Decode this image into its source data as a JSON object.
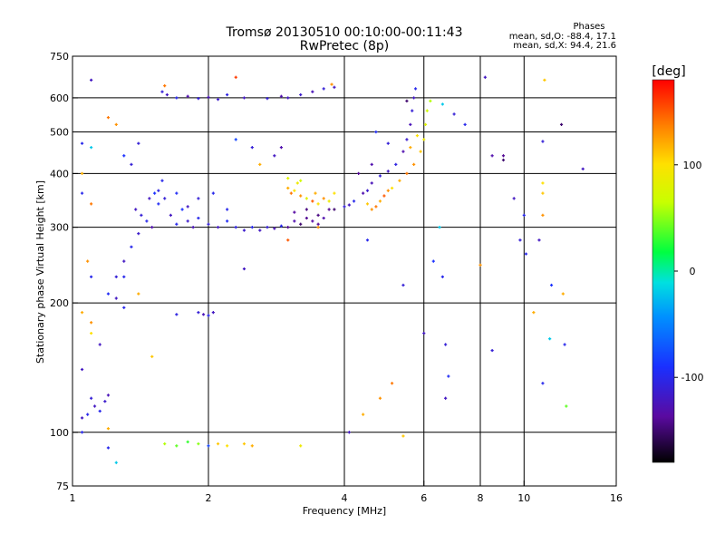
{
  "chart_data": {
    "type": "scatter",
    "title": "Tromsø 20130510 00:10:00-00:11:43",
    "subtitle": "RwPretec (8p)",
    "xlabel": "Frequency [MHz]",
    "ylabel": "Stationary phase Virtual Height [km]",
    "x_scale": "log",
    "y_scale": "log",
    "xlim": [
      1,
      16
    ],
    "ylim": [
      75,
      750
    ],
    "x_ticks": [
      {
        "v": 1,
        "t": "1"
      },
      {
        "v": 2,
        "t": "2"
      },
      {
        "v": 4,
        "t": "4"
      },
      {
        "v": 6,
        "t": "6"
      },
      {
        "v": 8,
        "t": "8"
      },
      {
        "v": 10,
        "t": "10"
      },
      {
        "v": 16,
        "t": "16"
      }
    ],
    "y_ticks": [
      {
        "v": 75,
        "t": "75"
      },
      {
        "v": 100,
        "t": "100"
      },
      {
        "v": 200,
        "t": "200"
      },
      {
        "v": 300,
        "t": "300"
      },
      {
        "v": 400,
        "t": "400"
      },
      {
        "v": 500,
        "t": "500"
      },
      {
        "v": 600,
        "t": "600"
      },
      {
        "v": 750,
        "t": "750"
      }
    ],
    "grid_x": [
      2,
      4,
      6,
      8,
      10
    ],
    "grid_y": [
      100,
      200,
      300,
      400,
      500,
      600
    ],
    "stats": {
      "header": "Phases",
      "line1": "mean, sd,O: -88.4, 17.1",
      "line2": "mean, sd,X:  94.4, 21.6"
    },
    "colorbar": {
      "label": "[deg]",
      "min": -180,
      "max": 180,
      "ticks": [
        {
          "v": 100,
          "t": "100"
        },
        {
          "v": 0,
          "t": "0"
        },
        {
          "v": -100,
          "t": "-100"
        }
      ]
    },
    "series": [
      {
        "points": [
          [
            1.58,
            620,
            -110
          ],
          [
            1.62,
            610,
            -120
          ],
          [
            1.7,
            600,
            -100
          ],
          [
            1.8,
            605,
            -130
          ],
          [
            1.9,
            598,
            -110
          ],
          [
            2.0,
            602,
            -125
          ],
          [
            2.1,
            595,
            -115
          ],
          [
            2.2,
            610,
            -105
          ],
          [
            2.4,
            600,
            -120
          ],
          [
            2.7,
            598,
            -110
          ],
          [
            2.9,
            605,
            -130
          ],
          [
            3.0,
            600,
            -120
          ],
          [
            3.2,
            610,
            -115
          ],
          [
            3.4,
            620,
            -125
          ],
          [
            3.6,
            630,
            -110
          ],
          [
            3.8,
            635,
            -120
          ],
          [
            3.75,
            645,
            130
          ],
          [
            1.6,
            640,
            140
          ],
          [
            2.3,
            670,
            160
          ],
          [
            1.1,
            660,
            -120
          ]
        ]
      },
      {
        "points": [
          [
            1.38,
            330,
            -120
          ],
          [
            1.42,
            320,
            -110
          ],
          [
            1.46,
            310,
            -100
          ],
          [
            1.5,
            300,
            -130
          ],
          [
            1.55,
            340,
            -95
          ],
          [
            1.6,
            350,
            -110
          ],
          [
            1.65,
            320,
            -120
          ],
          [
            1.7,
            305,
            -100
          ],
          [
            1.75,
            330,
            -90
          ],
          [
            1.8,
            310,
            -115
          ],
          [
            1.85,
            300,
            -125
          ],
          [
            1.9,
            315,
            -100
          ],
          [
            2.0,
            305,
            -110
          ],
          [
            2.1,
            300,
            -120
          ],
          [
            2.2,
            310,
            -95
          ],
          [
            2.3,
            300,
            -105
          ],
          [
            2.4,
            295,
            -115
          ],
          [
            2.5,
            300,
            -100
          ],
          [
            2.6,
            295,
            -120
          ],
          [
            2.7,
            300,
            -110
          ],
          [
            2.8,
            298,
            -125
          ],
          [
            2.9,
            302,
            -100
          ],
          [
            1.58,
            385,
            -100
          ],
          [
            1.52,
            360,
            -90
          ],
          [
            1.48,
            350,
            -120
          ],
          [
            1.55,
            365,
            -105
          ],
          [
            1.7,
            360,
            -95
          ],
          [
            1.9,
            350,
            -110
          ],
          [
            2.05,
            360,
            -100
          ],
          [
            1.8,
            335,
            -120
          ],
          [
            2.2,
            330,
            -100
          ]
        ]
      },
      {
        "points": [
          [
            3.0,
            300,
            -140
          ],
          [
            3.1,
            310,
            -130
          ],
          [
            3.2,
            305,
            -150
          ],
          [
            3.3,
            315,
            -140
          ],
          [
            3.4,
            310,
            -135
          ],
          [
            3.5,
            320,
            -145
          ],
          [
            3.6,
            315,
            -130
          ],
          [
            3.7,
            330,
            -140
          ],
          [
            3.8,
            330,
            -150
          ],
          [
            3.1,
            325,
            -135
          ],
          [
            3.3,
            330,
            -145
          ],
          [
            3.5,
            305,
            -140
          ]
        ]
      },
      {
        "points": [
          [
            3.0,
            370,
            120
          ],
          [
            3.05,
            360,
            140
          ],
          [
            3.1,
            365,
            100
          ],
          [
            3.15,
            380,
            90
          ],
          [
            3.2,
            355,
            130
          ],
          [
            3.3,
            350,
            80
          ],
          [
            3.4,
            345,
            150
          ],
          [
            3.45,
            360,
            120
          ],
          [
            3.5,
            340,
            100
          ],
          [
            3.6,
            350,
            130
          ],
          [
            3.7,
            345,
            90
          ],
          [
            3.0,
            390,
            80
          ],
          [
            3.2,
            385,
            70
          ],
          [
            3.8,
            360,
            100
          ]
        ]
      },
      {
        "points": [
          [
            4.0,
            335,
            -110
          ],
          [
            4.1,
            338,
            -120
          ],
          [
            4.2,
            345,
            -100
          ],
          [
            4.4,
            360,
            -130
          ],
          [
            4.5,
            365,
            -115
          ],
          [
            4.6,
            380,
            -125
          ],
          [
            4.8,
            395,
            -110
          ],
          [
            5.0,
            405,
            -120
          ],
          [
            5.2,
            420,
            -105
          ],
          [
            5.4,
            450,
            -130
          ],
          [
            5.5,
            480,
            -115
          ],
          [
            5.6,
            520,
            -125
          ],
          [
            5.65,
            560,
            -110
          ],
          [
            5.7,
            600,
            -120
          ],
          [
            5.75,
            630,
            -100
          ],
          [
            4.3,
            400,
            -140
          ],
          [
            4.6,
            420,
            -130
          ],
          [
            5.5,
            590,
            -150
          ],
          [
            5.0,
            470,
            -110
          ],
          [
            4.7,
            500,
            -95
          ]
        ]
      },
      {
        "points": [
          [
            4.5,
            340,
            110
          ],
          [
            4.6,
            330,
            130
          ],
          [
            4.7,
            335,
            140
          ],
          [
            4.8,
            345,
            120
          ],
          [
            4.9,
            355,
            150
          ],
          [
            5.0,
            365,
            130
          ],
          [
            5.1,
            370,
            100
          ],
          [
            5.3,
            385,
            120
          ],
          [
            5.5,
            400,
            140
          ],
          [
            5.7,
            420,
            130
          ],
          [
            5.9,
            450,
            110
          ],
          [
            6.0,
            480,
            90
          ],
          [
            6.05,
            520,
            80
          ],
          [
            6.1,
            560,
            70
          ],
          [
            5.8,
            490,
            100
          ],
          [
            5.6,
            460,
            120
          ]
        ]
      },
      {
        "points": [
          [
            1.1,
            120,
            -110
          ],
          [
            1.12,
            115,
            -120
          ],
          [
            1.15,
            112,
            -100
          ],
          [
            1.18,
            118,
            -115
          ],
          [
            1.2,
            122,
            -125
          ],
          [
            1.08,
            110,
            -100
          ],
          [
            1.05,
            108,
            -120
          ],
          [
            1.25,
            230,
            -110
          ],
          [
            1.3,
            250,
            -120
          ],
          [
            1.35,
            270,
            -100
          ],
          [
            1.4,
            290,
            -115
          ],
          [
            1.2,
            210,
            -95
          ],
          [
            1.25,
            205,
            -120
          ],
          [
            1.3,
            195,
            -100
          ]
        ]
      },
      {
        "points": [
          [
            1.9,
            190,
            -110
          ],
          [
            1.95,
            188,
            -125
          ],
          [
            2.0,
            187,
            -100
          ],
          [
            2.05,
            190,
            -120
          ],
          [
            1.7,
            188,
            -105
          ]
        ]
      },
      {
        "points": [
          [
            1.6,
            94,
            60
          ],
          [
            1.7,
            93,
            40
          ],
          [
            1.8,
            95,
            30
          ],
          [
            1.9,
            94,
            50
          ],
          [
            2.0,
            93,
            -80
          ],
          [
            2.1,
            94,
            110
          ],
          [
            2.2,
            93,
            100
          ],
          [
            2.4,
            94,
            110
          ],
          [
            2.5,
            93,
            120
          ],
          [
            3.2,
            93,
            90
          ],
          [
            1.2,
            92,
            -100
          ],
          [
            1.25,
            85,
            -20
          ]
        ]
      },
      {
        "points": [
          [
            1.05,
            470,
            -100
          ],
          [
            1.1,
            460,
            -20
          ],
          [
            1.2,
            540,
            140
          ],
          [
            1.25,
            520,
            130
          ],
          [
            1.3,
            440,
            -90
          ],
          [
            1.35,
            420,
            -110
          ],
          [
            1.4,
            470,
            -110
          ],
          [
            1.1,
            340,
            140
          ],
          [
            1.05,
            400,
            120
          ],
          [
            1.05,
            360,
            -100
          ],
          [
            1.08,
            250,
            130
          ],
          [
            1.1,
            230,
            -100
          ],
          [
            1.05,
            190,
            120
          ],
          [
            1.1,
            180,
            130
          ],
          [
            1.15,
            160,
            -120
          ],
          [
            1.5,
            150,
            110
          ],
          [
            1.1,
            170,
            100
          ],
          [
            1.05,
            140,
            -120
          ],
          [
            1.2,
            102,
            120
          ],
          [
            1.05,
            100,
            -100
          ],
          [
            1.3,
            230,
            -100
          ],
          [
            1.4,
            210,
            120
          ],
          [
            2.4,
            240,
            -120
          ],
          [
            2.3,
            480,
            -80
          ],
          [
            2.5,
            460,
            -110
          ],
          [
            2.8,
            440,
            -120
          ],
          [
            2.9,
            460,
            -130
          ],
          [
            2.6,
            420,
            120
          ],
          [
            3.0,
            280,
            150
          ],
          [
            3.5,
            300,
            130
          ],
          [
            4.5,
            280,
            -100
          ],
          [
            4.1,
            100,
            -120
          ],
          [
            4.4,
            110,
            120
          ],
          [
            4.8,
            120,
            130
          ],
          [
            5.1,
            130,
            140
          ],
          [
            5.4,
            98,
            110
          ],
          [
            5.4,
            220,
            -110
          ],
          [
            6.0,
            170,
            -120
          ],
          [
            6.3,
            250,
            -90
          ],
          [
            6.5,
            300,
            -20
          ],
          [
            6.6,
            230,
            -100
          ],
          [
            6.7,
            160,
            -110
          ],
          [
            6.8,
            135,
            -95
          ],
          [
            6.7,
            120,
            -120
          ],
          [
            6.2,
            590,
            60
          ],
          [
            6.6,
            580,
            -20
          ],
          [
            7.0,
            550,
            -110
          ],
          [
            7.4,
            520,
            -100
          ],
          [
            8.0,
            245,
            130
          ],
          [
            8.2,
            670,
            -120
          ],
          [
            8.5,
            440,
            -130
          ],
          [
            9.0,
            440,
            -140
          ],
          [
            9.0,
            430,
            -150
          ],
          [
            9.5,
            350,
            -120
          ],
          [
            9.8,
            280,
            -110
          ],
          [
            10.1,
            260,
            -100
          ],
          [
            10.5,
            190,
            120
          ],
          [
            10.8,
            280,
            -120
          ],
          [
            11.0,
            320,
            130
          ],
          [
            11.0,
            360,
            110
          ],
          [
            11.0,
            380,
            100
          ],
          [
            11.0,
            475,
            -110
          ],
          [
            11.1,
            660,
            110
          ],
          [
            11.5,
            220,
            -90
          ],
          [
            12.1,
            520,
            -150
          ],
          [
            12.2,
            210,
            120
          ],
          [
            12.3,
            160,
            -100
          ],
          [
            12.4,
            115,
            40
          ],
          [
            13.5,
            410,
            -120
          ],
          [
            11.4,
            165,
            -20
          ],
          [
            11.0,
            130,
            -100
          ],
          [
            8.5,
            155,
            -110
          ],
          [
            10.0,
            320,
            -100
          ]
        ]
      }
    ]
  }
}
